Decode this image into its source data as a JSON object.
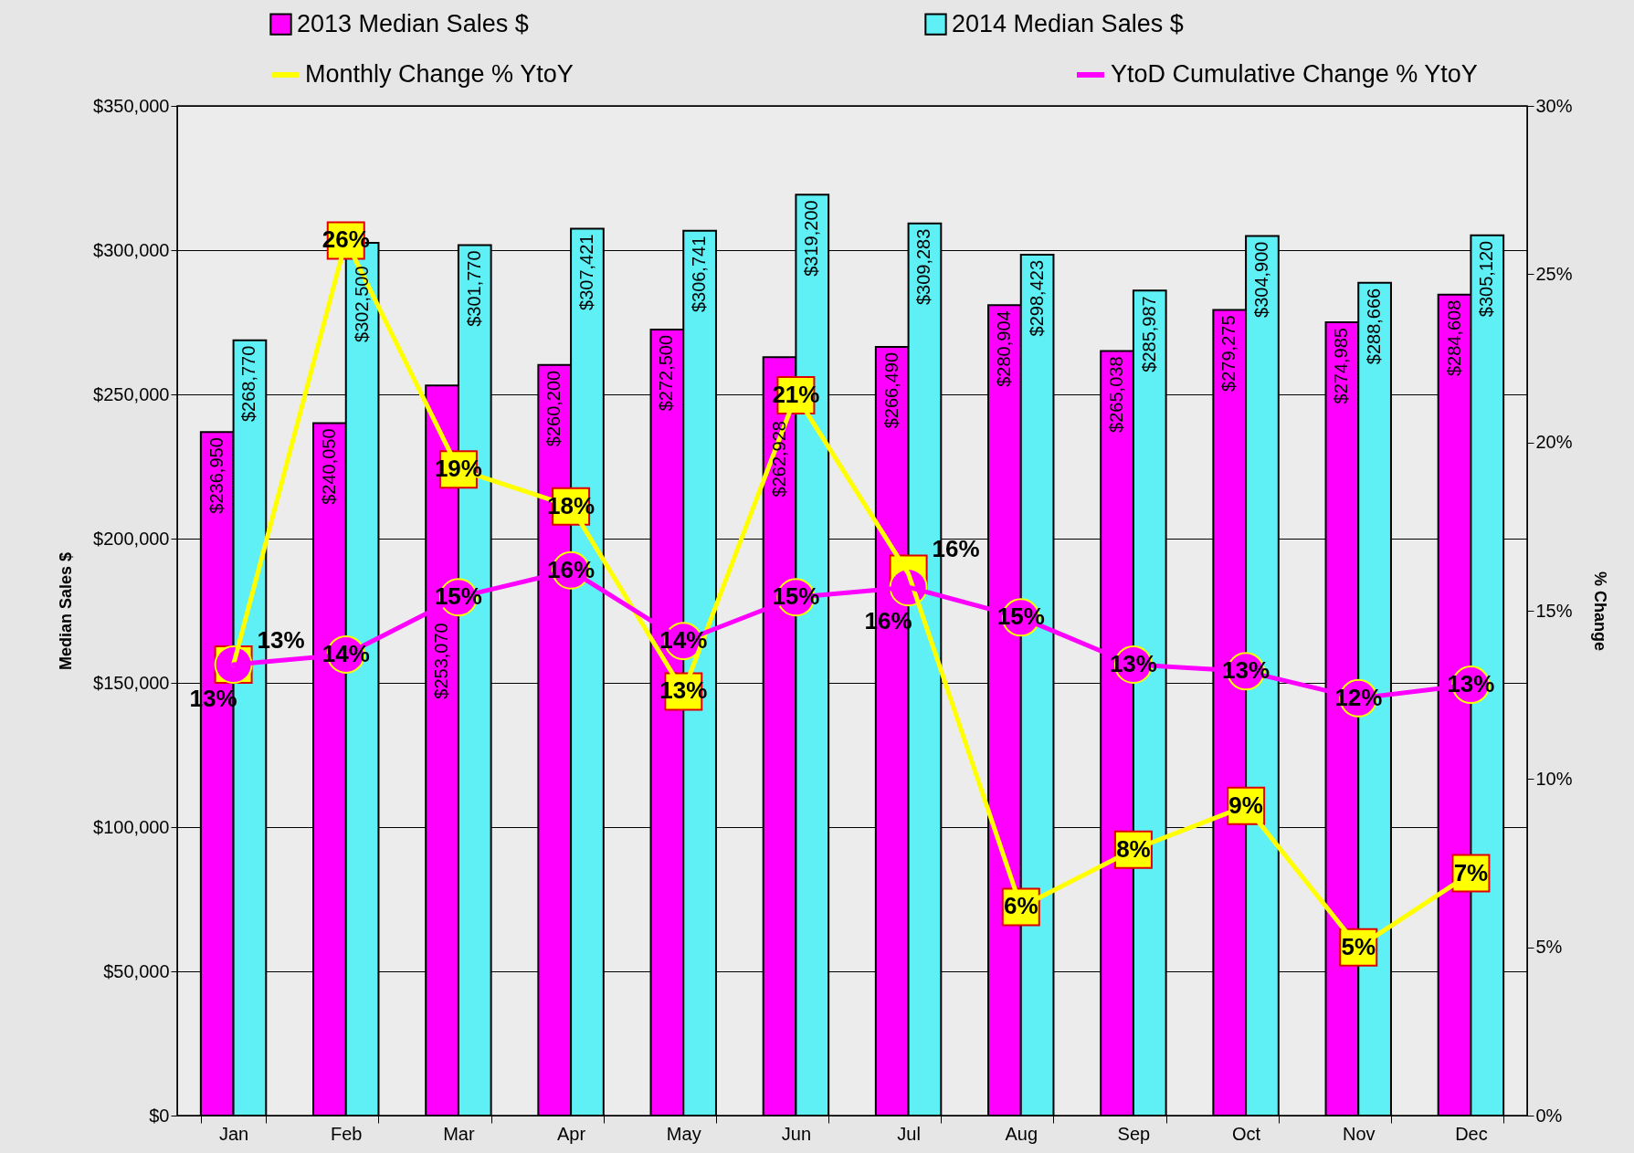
{
  "chart_data": {
    "type": "bar",
    "ylabel": "Median Sales $",
    "y2label": "% Change",
    "categories": [
      "Jan",
      "Feb",
      "Mar",
      "Apr",
      "May",
      "Jun",
      "Jul",
      "Aug",
      "Sep",
      "Oct",
      "Nov",
      "Dec"
    ],
    "series": [
      {
        "name": "2013 Median Sales $",
        "type": "bar",
        "color": "#ff00ff",
        "values": [
          236950,
          240050,
          253070,
          260200,
          272500,
          262928,
          266490,
          280904,
          265038,
          279275,
          274985,
          284608
        ],
        "value_labels": [
          "$236,950",
          "$240,050",
          "$253,070",
          "$260,200",
          "$272,500",
          "$262,928",
          "$266,490",
          "$280,904",
          "$265,038",
          "$279,275",
          "$274,985",
          "$284,608"
        ]
      },
      {
        "name": "2014 Median Sales $",
        "type": "bar",
        "color": "#5ef0f5",
        "values": [
          268770,
          302500,
          301770,
          307421,
          306741,
          319200,
          309283,
          298423,
          285987,
          304900,
          288666,
          305120
        ],
        "value_labels": [
          "$268,770",
          "$302,500",
          "$301,770",
          "$307,421",
          "$306,741",
          "$319,200",
          "$309,283",
          "$298,423",
          "$285,987",
          "$304,900",
          "$288,666",
          "$305,120"
        ]
      },
      {
        "name": "Monthly Change % YtoY",
        "type": "line",
        "axis": "y2",
        "marker": "square",
        "color": "#ffff00",
        "values": [
          13.4,
          26.0,
          19.2,
          18.1,
          12.6,
          21.4,
          16.1,
          6.2,
          7.9,
          9.2,
          5.0,
          7.2
        ],
        "value_labels": [
          "13%",
          "26%",
          "19%",
          "18%",
          "13%",
          "21%",
          "16%",
          "6%",
          "8%",
          "9%",
          "5%",
          "7%"
        ]
      },
      {
        "name": "YtoD Cumulative Change % YtoY",
        "type": "line",
        "axis": "y2",
        "marker": "circle",
        "color": "#ff00ff",
        "values": [
          13.4,
          13.7,
          15.4,
          16.2,
          14.1,
          15.4,
          15.7,
          14.8,
          13.4,
          13.2,
          12.4,
          12.8
        ],
        "value_labels": [
          "13%",
          "14%",
          "15%",
          "16%",
          "14%",
          "15%",
          "16%",
          "15%",
          "13%",
          "13%",
          "12%",
          "13%"
        ]
      }
    ],
    "ylim": [
      0,
      350000
    ],
    "yticks": [
      {
        "value": 0,
        "label": "$0"
      },
      {
        "value": 50000,
        "label": "$50,000"
      },
      {
        "value": 100000,
        "label": "$100,000"
      },
      {
        "value": 150000,
        "label": "$150,000"
      },
      {
        "value": 200000,
        "label": "$200,000"
      },
      {
        "value": 250000,
        "label": "$250,000"
      },
      {
        "value": 300000,
        "label": "$300,000"
      },
      {
        "value": 350000,
        "label": "$350,000"
      }
    ],
    "y2lim": [
      0,
      30
    ],
    "y2ticks": [
      {
        "value": 0,
        "label": "0%"
      },
      {
        "value": 5,
        "label": "5%"
      },
      {
        "value": 10,
        "label": "10%"
      },
      {
        "value": 15,
        "label": "15%"
      },
      {
        "value": 20,
        "label": "20%"
      },
      {
        "value": 25,
        "label": "25%"
      },
      {
        "value": 30,
        "label": "30%"
      }
    ],
    "grid": "y",
    "legend": "top",
    "line_style": "solid"
  }
}
